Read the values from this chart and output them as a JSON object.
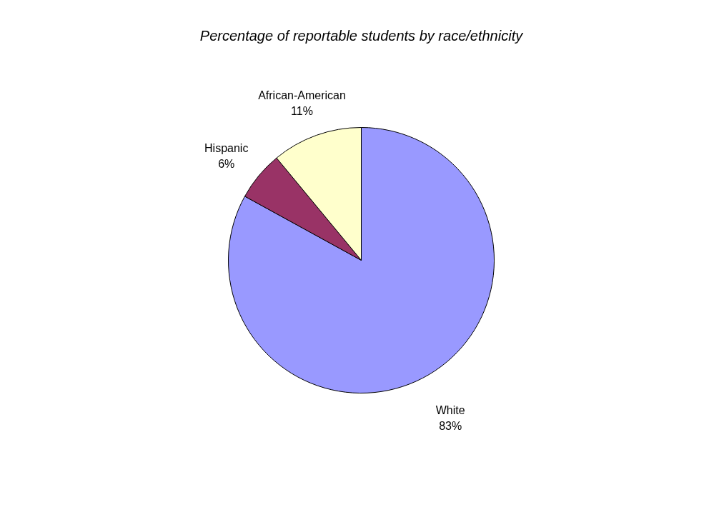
{
  "chart_data": {
    "type": "pie",
    "title": "Percentage of reportable students by race/ethnicity",
    "categories": [
      "White",
      "Hispanic",
      "African-American"
    ],
    "values": [
      83,
      6,
      11
    ],
    "colors": [
      "#9999ff",
      "#993366",
      "#ffffcc"
    ],
    "value_labels": [
      "83%",
      "6%",
      "11%"
    ],
    "legend": false
  }
}
